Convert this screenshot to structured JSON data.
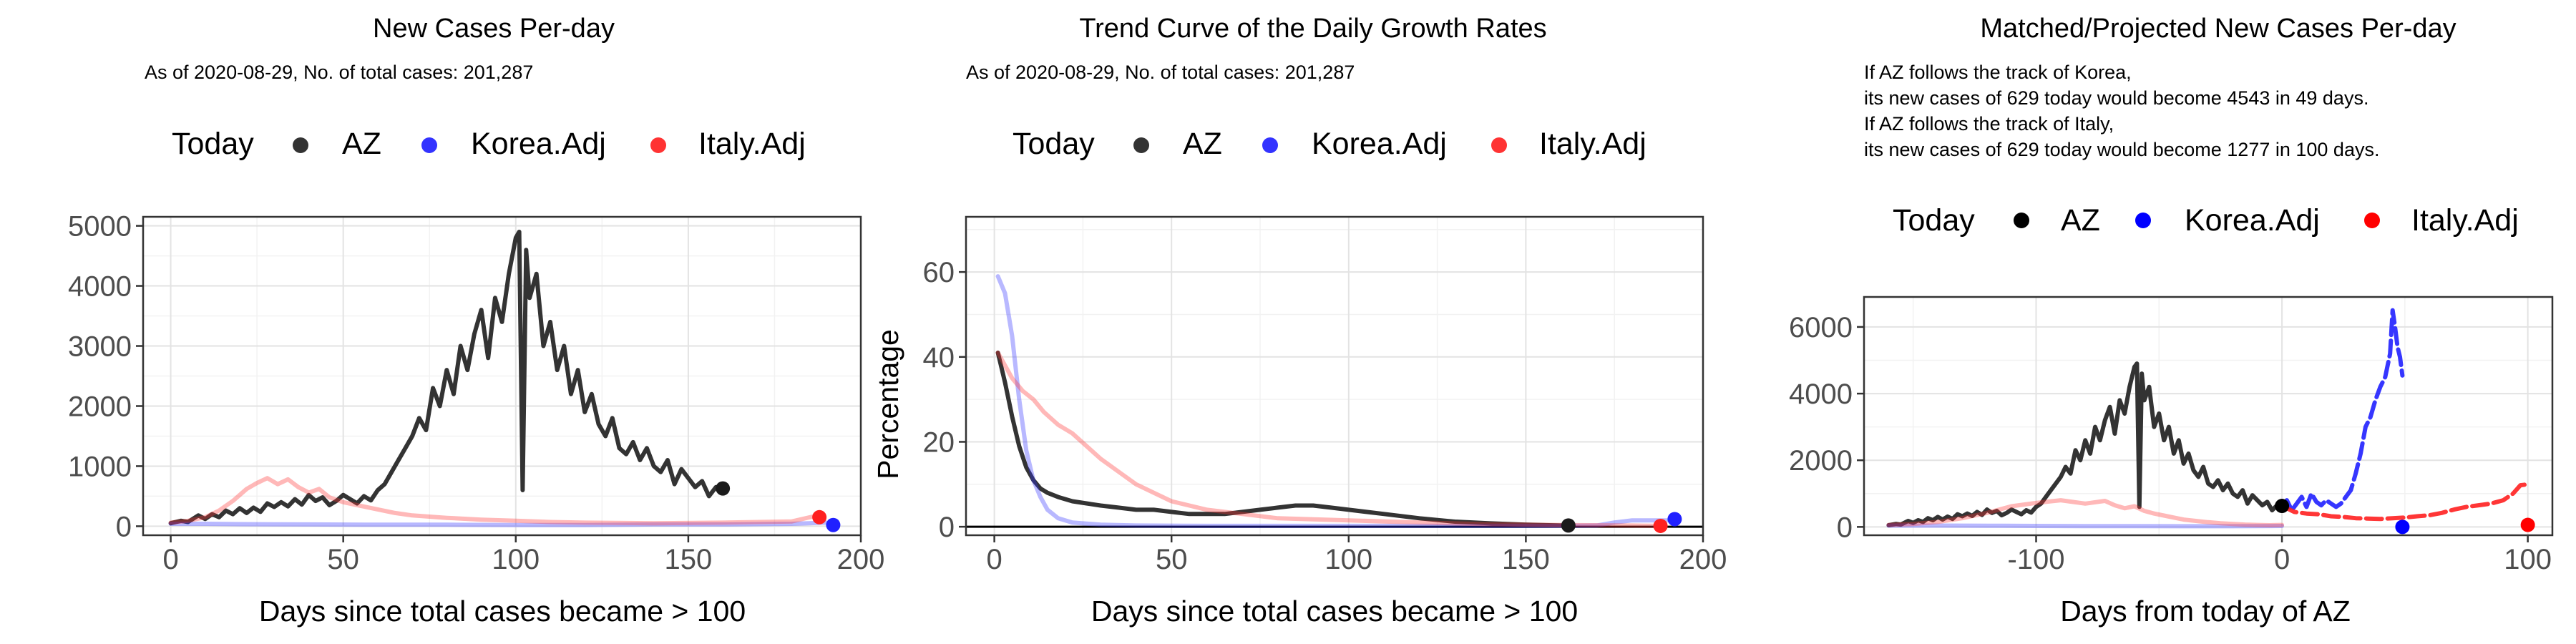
{
  "chart_data": [
    {
      "type": "line",
      "title": "New Cases Per-day",
      "subtitle": "As of 2020-08-29, No. of total cases: 201,287",
      "xlabel": "Days since total cases became > 100",
      "ylabel": "",
      "xlim": [
        -8,
        200
      ],
      "ylim": [
        -150,
        5150
      ],
      "x_ticks": [
        0,
        50,
        100,
        150,
        200
      ],
      "x_tick_labels": [
        "0",
        "50",
        "100",
        "150",
        "200"
      ],
      "y_ticks": [
        0,
        1000,
        2000,
        3000,
        4000,
        5000
      ],
      "y_tick_labels": [
        "0",
        "1000",
        "2000",
        "3000",
        "4000",
        "5000"
      ],
      "grid": true,
      "legend": {
        "position": "top",
        "title": "Today",
        "entries": [
          {
            "label": "AZ",
            "color": "#333333"
          },
          {
            "label": "Korea.Adj",
            "color": "#3333ff"
          },
          {
            "label": "Italy.Adj",
            "color": "#ff3333"
          }
        ]
      },
      "series": [
        {
          "name": "AZ",
          "color": "#333333",
          "opacity": 1,
          "x": [
            0,
            3,
            5,
            8,
            10,
            12,
            14,
            16,
            18,
            20,
            22,
            24,
            26,
            28,
            30,
            32,
            34,
            36,
            38,
            40,
            42,
            44,
            46,
            48,
            50,
            52,
            54,
            56,
            58,
            60,
            62,
            64,
            66,
            68,
            70,
            72,
            74,
            76,
            78,
            80,
            82,
            84,
            86,
            88,
            90,
            92,
            94,
            96,
            98,
            100,
            101,
            102,
            103,
            104,
            106,
            108,
            110,
            112,
            114,
            116,
            118,
            120,
            122,
            124,
            126,
            128,
            130,
            132,
            134,
            136,
            138,
            140,
            142,
            144,
            146,
            148,
            150,
            152,
            154,
            156,
            158,
            160
          ],
          "y": [
            50,
            90,
            70,
            180,
            120,
            200,
            150,
            260,
            200,
            300,
            220,
            310,
            240,
            380,
            320,
            400,
            330,
            450,
            360,
            520,
            420,
            480,
            350,
            420,
            520,
            450,
            380,
            500,
            430,
            600,
            700,
            900,
            1100,
            1300,
            1500,
            1800,
            1600,
            2300,
            2000,
            2600,
            2200,
            3000,
            2600,
            3200,
            3600,
            2800,
            3800,
            3400,
            4200,
            4800,
            4900,
            600,
            4600,
            3800,
            4200,
            3000,
            3400,
            2600,
            3000,
            2200,
            2600,
            1900,
            2200,
            1700,
            1500,
            1800,
            1300,
            1200,
            1400,
            1100,
            1300,
            1000,
            900,
            1100,
            700,
            950,
            800,
            650,
            750,
            500,
            650,
            629
          ]
        },
        {
          "name": "Korea.Adj",
          "color": "#3333ff",
          "opacity": 0.35,
          "x": [
            0,
            10,
            20,
            40,
            60,
            80,
            100,
            120,
            140,
            160,
            180,
            185,
            190
          ],
          "y": [
            40,
            40,
            35,
            30,
            25,
            25,
            20,
            20,
            30,
            30,
            40,
            50,
            60
          ]
        },
        {
          "name": "Italy.Adj",
          "color": "#ff3333",
          "opacity": 0.35,
          "x": [
            0,
            5,
            10,
            14,
            18,
            22,
            25,
            28,
            31,
            34,
            37,
            40,
            43,
            46,
            50,
            55,
            60,
            65,
            70,
            80,
            90,
            100,
            110,
            120,
            140,
            160,
            180,
            186,
            189
          ],
          "y": [
            60,
            90,
            150,
            260,
            420,
            620,
            720,
            800,
            700,
            780,
            650,
            560,
            620,
            480,
            400,
            340,
            280,
            220,
            180,
            140,
            110,
            90,
            70,
            60,
            50,
            60,
            80,
            160,
            180
          ]
        }
      ],
      "today_points": [
        {
          "name": "AZ",
          "x": 160,
          "y": 629,
          "color": "#1a1a1a"
        },
        {
          "name": "Korea.Adj",
          "x": 192,
          "y": 20,
          "color": "#2020ff"
        },
        {
          "name": "Italy.Adj",
          "x": 188,
          "y": 150,
          "color": "#ff2020"
        }
      ]
    },
    {
      "type": "line",
      "title": "Trend Curve of the Daily Growth Rates",
      "subtitle": "As of 2020-08-29, No. of total cases: 201,287",
      "xlabel": "Days since total cases became > 100",
      "ylabel": "Percentage",
      "xlim": [
        -8,
        200
      ],
      "ylim": [
        -2,
        73
      ],
      "x_ticks": [
        0,
        50,
        100,
        150,
        200
      ],
      "x_tick_labels": [
        "0",
        "50",
        "100",
        "150",
        "200"
      ],
      "y_ticks": [
        0,
        20,
        40,
        60
      ],
      "y_tick_labels": [
        "0",
        "20",
        "40",
        "60"
      ],
      "hline": 0,
      "grid": true,
      "legend": {
        "position": "top",
        "title": "Today",
        "entries": [
          {
            "label": "AZ",
            "color": "#333333"
          },
          {
            "label": "Korea.Adj",
            "color": "#3333ff"
          },
          {
            "label": "Italy.Adj",
            "color": "#ff3333"
          }
        ]
      },
      "series": [
        {
          "name": "AZ",
          "color": "#333333",
          "opacity": 1,
          "x": [
            1,
            3,
            5,
            7,
            9,
            11,
            13,
            15,
            18,
            22,
            26,
            30,
            35,
            40,
            45,
            50,
            55,
            60,
            65,
            70,
            75,
            80,
            85,
            90,
            95,
            100,
            110,
            120,
            130,
            140,
            150,
            160
          ],
          "y": [
            41,
            34,
            26,
            19,
            14,
            11,
            9,
            8,
            7,
            6,
            5.5,
            5,
            4.5,
            4,
            4,
            3.5,
            3,
            3,
            3,
            3.5,
            4,
            4.5,
            5,
            5,
            4.5,
            4,
            3,
            2,
            1.2,
            0.8,
            0.5,
            0.3
          ]
        },
        {
          "name": "Korea.Adj",
          "color": "#3333ff",
          "opacity": 0.35,
          "x": [
            1,
            3,
            5,
            7,
            9,
            11,
            13,
            15,
            18,
            22,
            30,
            40,
            60,
            80,
            100,
            120,
            140,
            160,
            170,
            175,
            180,
            185,
            190
          ],
          "y": [
            59,
            55,
            45,
            30,
            18,
            11,
            7,
            4,
            2,
            1,
            0.5,
            0.3,
            0.2,
            0.2,
            0.2,
            0.2,
            0.2,
            0.2,
            0.3,
            1,
            1.5,
            1.5,
            1.5
          ]
        },
        {
          "name": "Italy.Adj",
          "color": "#ff3333",
          "opacity": 0.35,
          "x": [
            1,
            3,
            5,
            8,
            11,
            14,
            18,
            22,
            26,
            30,
            35,
            40,
            45,
            50,
            60,
            70,
            80,
            100,
            120,
            140,
            160,
            180,
            188
          ],
          "y": [
            41,
            38,
            35,
            32,
            30,
            27,
            24,
            22,
            19,
            16,
            13,
            10,
            8,
            6,
            4,
            3,
            2,
            1.5,
            1,
            0.6,
            0.4,
            0.3,
            0.2
          ]
        }
      ],
      "today_points": [
        {
          "name": "AZ",
          "x": 162,
          "y": 0.3,
          "color": "#1a1a1a"
        },
        {
          "name": "Korea.Adj",
          "x": 192,
          "y": 1.8,
          "color": "#2020ff"
        },
        {
          "name": "Italy.Adj",
          "x": 188,
          "y": 0.2,
          "color": "#ff2020"
        }
      ]
    },
    {
      "type": "line",
      "title": "Matched/Projected New Cases Per-day",
      "notes": [
        "If AZ follows the track of Korea,",
        "its new cases of 629 today would become 4543 in 49 days.",
        "If AZ follows the track of Italy,",
        "its new cases of 629 today would become 1277 in 100 days."
      ],
      "xlabel": "Days from today of AZ",
      "ylabel": "",
      "xlim": [
        -170,
        110
      ],
      "ylim": [
        -250,
        6900
      ],
      "x_ticks": [
        -100,
        0,
        100
      ],
      "x_tick_labels": [
        "-100",
        "0",
        "100"
      ],
      "y_ticks": [
        0,
        2000,
        4000,
        6000
      ],
      "y_tick_labels": [
        "0",
        "2000",
        "4000",
        "6000"
      ],
      "grid": true,
      "legend": {
        "position": "top",
        "title": "Today",
        "entries": [
          {
            "label": "AZ",
            "color": "#000000"
          },
          {
            "label": "Korea.Adj",
            "color": "#0000ff"
          },
          {
            "label": "Italy.Adj",
            "color": "#ff0000"
          }
        ]
      },
      "series": [
        {
          "name": "AZ",
          "color": "#333333",
          "opacity": 1,
          "dashed": false,
          "x": [
            -160,
            -157,
            -155,
            -152,
            -150,
            -148,
            -146,
            -144,
            -142,
            -140,
            -138,
            -136,
            -134,
            -132,
            -130,
            -128,
            -126,
            -124,
            -122,
            -120,
            -118,
            -116,
            -114,
            -112,
            -110,
            -108,
            -106,
            -104,
            -102,
            -100,
            -98,
            -96,
            -94,
            -92,
            -90,
            -88,
            -86,
            -84,
            -82,
            -80,
            -78,
            -76,
            -74,
            -72,
            -70,
            -68,
            -66,
            -64,
            -62,
            -60,
            -59,
            -58,
            -57,
            -56,
            -54,
            -52,
            -50,
            -48,
            -46,
            -44,
            -42,
            -40,
            -38,
            -36,
            -34,
            -32,
            -30,
            -28,
            -26,
            -24,
            -22,
            -20,
            -18,
            -16,
            -14,
            -12,
            -10,
            -8,
            -6,
            -4,
            -2,
            0
          ],
          "y": [
            50,
            90,
            70,
            180,
            120,
            200,
            150,
            260,
            200,
            300,
            220,
            310,
            240,
            380,
            320,
            400,
            330,
            450,
            360,
            520,
            420,
            480,
            350,
            420,
            520,
            450,
            380,
            500,
            430,
            600,
            700,
            900,
            1100,
            1300,
            1500,
            1800,
            1600,
            2300,
            2000,
            2600,
            2200,
            3000,
            2600,
            3200,
            3600,
            2800,
            3800,
            3400,
            4200,
            4800,
            4900,
            600,
            4600,
            3800,
            4200,
            3000,
            3400,
            2600,
            3000,
            2200,
            2600,
            1900,
            2200,
            1700,
            1500,
            1800,
            1300,
            1200,
            1400,
            1100,
            1300,
            1000,
            900,
            1100,
            700,
            950,
            800,
            650,
            750,
            500,
            650,
            629
          ]
        },
        {
          "name": "Korea.Adj",
          "color": "#3333ff",
          "opacity": 0.35,
          "dashed": false,
          "x": [
            -160,
            -140,
            -120,
            -100,
            -80,
            -60,
            -40,
            -20,
            0
          ],
          "y": [
            40,
            40,
            35,
            30,
            25,
            25,
            20,
            20,
            30
          ]
        },
        {
          "name": "Italy.Adj",
          "color": "#ff3333",
          "opacity": 0.35,
          "dashed": false,
          "x": [
            -160,
            -150,
            -140,
            -130,
            -120,
            -110,
            -100,
            -90,
            -80,
            -72,
            -68,
            -64,
            -60,
            -56,
            -52,
            -48,
            -44,
            -40,
            -35,
            -30,
            -25,
            -20,
            -15,
            -10,
            -5,
            0
          ],
          "y": [
            60,
            90,
            150,
            260,
            420,
            620,
            720,
            800,
            700,
            780,
            650,
            560,
            620,
            480,
            400,
            340,
            280,
            220,
            180,
            140,
            110,
            90,
            70,
            60,
            50,
            60
          ]
        },
        {
          "name": "Korea.Adj",
          "color": "#2020ff",
          "opacity": 0.9,
          "dashed": true,
          "x": [
            0,
            2,
            4,
            6,
            8,
            10,
            12,
            14,
            16,
            18,
            20,
            22,
            24,
            26,
            28,
            30,
            32,
            34,
            36,
            38,
            40,
            42,
            44,
            45,
            46,
            47,
            48,
            49
          ],
          "y": [
            629,
            800,
            500,
            700,
            900,
            600,
            1000,
            750,
            650,
            800,
            700,
            600,
            700,
            900,
            1100,
            1600,
            2200,
            3000,
            3300,
            3800,
            4200,
            4500,
            5200,
            6500,
            6000,
            5400,
            5100,
            4543
          ]
        },
        {
          "name": "Italy.Adj",
          "color": "#ff2020",
          "opacity": 0.9,
          "dashed": true,
          "x": [
            0,
            5,
            10,
            15,
            20,
            25,
            30,
            35,
            40,
            45,
            50,
            55,
            60,
            65,
            70,
            75,
            80,
            85,
            90,
            94,
            97,
            100
          ],
          "y": [
            629,
            450,
            400,
            380,
            320,
            300,
            260,
            250,
            240,
            260,
            280,
            320,
            350,
            420,
            520,
            600,
            650,
            700,
            800,
            1000,
            1250,
            1277
          ]
        }
      ],
      "today_points": [
        {
          "name": "AZ",
          "x": 0,
          "y": 629,
          "color": "#000000"
        },
        {
          "name": "Korea.Adj",
          "x": 49,
          "y": 0,
          "color": "#0000ff"
        },
        {
          "name": "Italy.Adj",
          "x": 100,
          "y": 60,
          "color": "#ff0000"
        }
      ]
    }
  ]
}
